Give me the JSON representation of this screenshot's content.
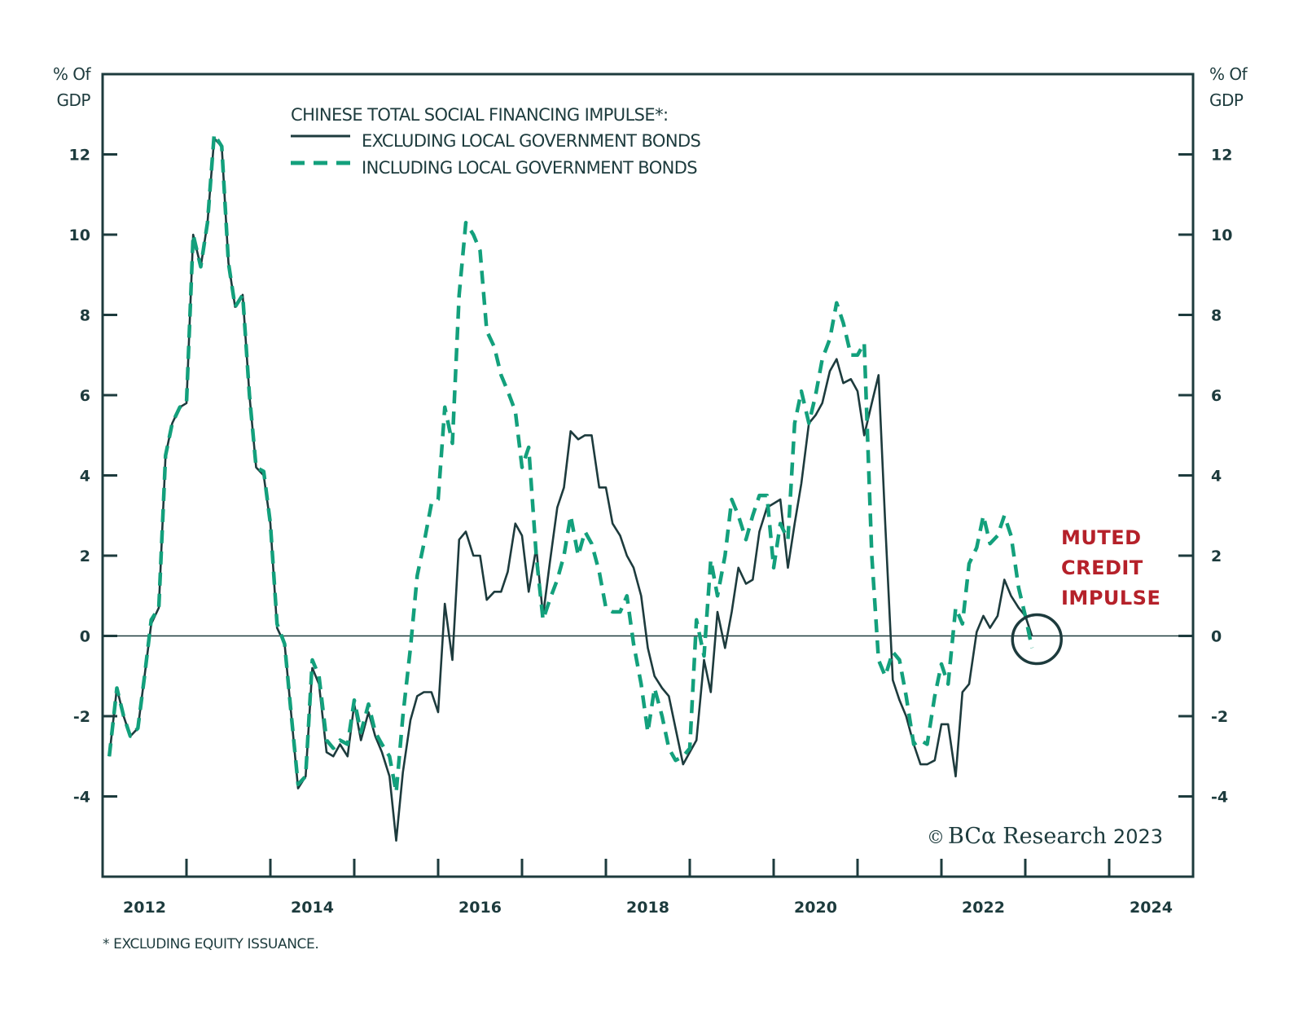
{
  "chart_data": {
    "type": "line",
    "title": "CHINESE TOTAL SOCIAL FINANCING IMPULSE*:",
    "ylabel_left": "% Of GDP",
    "ylabel_right": "% Of GDP",
    "xlabel": "",
    "xlim": [
      2012,
      2025
    ],
    "ylim": [
      -6,
      14
    ],
    "x_ticks": [
      2012,
      2013,
      2014,
      2015,
      2016,
      2017,
      2018,
      2019,
      2020,
      2021,
      2022,
      2023,
      2024,
      2025
    ],
    "x_tick_labels": [
      "2012",
      "2014",
      "2016",
      "2018",
      "2020",
      "2022",
      "2024"
    ],
    "x_tick_label_positions": [
      2012.5,
      2014.5,
      2016.5,
      2018.5,
      2020.5,
      2022.5,
      2024.5
    ],
    "y_ticks": [
      -4,
      -2,
      0,
      2,
      4,
      6,
      8,
      10,
      12
    ],
    "y_tick_labels": [
      "-4",
      "-2",
      "0",
      "2",
      "4",
      "6",
      "8",
      "10",
      "12"
    ],
    "zero_line": true,
    "grid": false,
    "legend_position": "top-center",
    "series": [
      {
        "name": "EXCLUDING LOCAL GOVERNMENT BONDS",
        "style": "solid",
        "color": "#1d3b3d",
        "x": [
          2012.08,
          2012.17,
          2012.25,
          2012.33,
          2012.42,
          2012.5,
          2012.58,
          2012.67,
          2012.75,
          2012.83,
          2012.92,
          2013.0,
          2013.08,
          2013.17,
          2013.25,
          2013.33,
          2013.42,
          2013.5,
          2013.58,
          2013.67,
          2013.75,
          2013.83,
          2013.92,
          2014.0,
          2014.08,
          2014.17,
          2014.25,
          2014.33,
          2014.42,
          2014.5,
          2014.58,
          2014.67,
          2014.75,
          2014.83,
          2014.92,
          2015.0,
          2015.08,
          2015.17,
          2015.25,
          2015.33,
          2015.42,
          2015.5,
          2015.58,
          2015.67,
          2015.75,
          2015.83,
          2015.92,
          2016.0,
          2016.08,
          2016.17,
          2016.25,
          2016.33,
          2016.42,
          2016.5,
          2016.58,
          2016.67,
          2016.75,
          2016.83,
          2016.92,
          2017.0,
          2017.08,
          2017.17,
          2017.25,
          2017.33,
          2017.42,
          2017.5,
          2017.58,
          2017.67,
          2017.75,
          2017.83,
          2017.92,
          2018.0,
          2018.08,
          2018.17,
          2018.25,
          2018.33,
          2018.42,
          2018.5,
          2018.58,
          2018.67,
          2018.75,
          2018.83,
          2018.92,
          2019.0,
          2019.08,
          2019.17,
          2019.25,
          2019.33,
          2019.42,
          2019.5,
          2019.58,
          2019.67,
          2019.75,
          2019.83,
          2019.92,
          2020.0,
          2020.08,
          2020.17,
          2020.25,
          2020.33,
          2020.42,
          2020.5,
          2020.58,
          2020.67,
          2020.75,
          2020.83,
          2020.92,
          2021.0,
          2021.08,
          2021.17,
          2021.25,
          2021.33,
          2021.42,
          2021.5,
          2021.58,
          2021.67,
          2021.75,
          2021.83,
          2021.92,
          2022.0,
          2022.08,
          2022.17,
          2022.25,
          2022.33,
          2022.42,
          2022.5,
          2022.58,
          2022.67,
          2022.75,
          2022.83,
          2022.92,
          2023.0,
          2023.08
        ],
        "values": [
          -3.0,
          -1.3,
          -2.0,
          -2.5,
          -2.3,
          -1.0,
          0.3,
          0.7,
          4.5,
          5.3,
          5.7,
          5.8,
          10.0,
          9.2,
          10.3,
          12.4,
          12.2,
          9.3,
          8.2,
          8.5,
          6.0,
          4.2,
          4.0,
          2.8,
          0.2,
          -0.2,
          -2.0,
          -3.8,
          -3.5,
          -0.8,
          -1.2,
          -2.9,
          -3.0,
          -2.7,
          -3.0,
          -1.7,
          -2.6,
          -1.9,
          -2.5,
          -2.9,
          -3.5,
          -5.1,
          -3.4,
          -2.1,
          -1.5,
          -1.4,
          -1.4,
          -1.9,
          0.8,
          -0.6,
          2.4,
          2.6,
          2.0,
          2.0,
          0.9,
          1.1,
          1.1,
          1.6,
          2.8,
          2.5,
          1.1,
          2.2,
          0.5,
          1.8,
          3.2,
          3.7,
          5.1,
          4.9,
          5.0,
          5.0,
          3.7,
          3.7,
          2.8,
          2.5,
          2.0,
          1.7,
          1.0,
          -0.3,
          -1.0,
          -1.3,
          -1.5,
          -2.3,
          -3.2,
          -2.9,
          -2.6,
          -0.6,
          -1.4,
          0.6,
          -0.3,
          0.6,
          1.7,
          1.3,
          1.4,
          2.6,
          3.2,
          3.3,
          3.4,
          1.7,
          2.8,
          3.8,
          5.3,
          5.5,
          5.8,
          6.6,
          6.9,
          6.3,
          6.4,
          6.1,
          5.0,
          5.8,
          6.5,
          2.8,
          -1.1,
          -1.6,
          -2.0,
          -2.7,
          -3.2,
          -3.2,
          -3.1,
          -2.2,
          -2.2,
          -3.5,
          -1.4,
          -1.2,
          0.1,
          0.5,
          0.2,
          0.5,
          1.4,
          1.0,
          0.7,
          0.5,
          0.0
        ],
        "last_value_label": ""
      },
      {
        "name": "INCLUDING LOCAL GOVERNMENT BONDS",
        "style": "dashed",
        "color": "#13a07c",
        "x": [
          2012.08,
          2012.17,
          2012.25,
          2012.33,
          2012.42,
          2012.5,
          2012.58,
          2012.67,
          2012.75,
          2012.83,
          2012.92,
          2013.0,
          2013.08,
          2013.17,
          2013.25,
          2013.33,
          2013.42,
          2013.5,
          2013.58,
          2013.67,
          2013.75,
          2013.83,
          2013.92,
          2014.0,
          2014.08,
          2014.17,
          2014.25,
          2014.33,
          2014.42,
          2014.5,
          2014.58,
          2014.67,
          2014.75,
          2014.83,
          2014.92,
          2015.0,
          2015.08,
          2015.17,
          2015.25,
          2015.33,
          2015.42,
          2015.5,
          2015.58,
          2015.67,
          2015.75,
          2015.83,
          2015.92,
          2016.0,
          2016.08,
          2016.17,
          2016.25,
          2016.33,
          2016.42,
          2016.5,
          2016.58,
          2016.67,
          2016.75,
          2016.83,
          2016.92,
          2017.0,
          2017.08,
          2017.17,
          2017.25,
          2017.33,
          2017.42,
          2017.5,
          2017.58,
          2017.67,
          2017.75,
          2017.83,
          2017.92,
          2018.0,
          2018.08,
          2018.17,
          2018.25,
          2018.33,
          2018.42,
          2018.5,
          2018.58,
          2018.67,
          2018.75,
          2018.83,
          2018.92,
          2019.0,
          2019.08,
          2019.17,
          2019.25,
          2019.33,
          2019.42,
          2019.5,
          2019.58,
          2019.67,
          2019.75,
          2019.83,
          2019.92,
          2020.0,
          2020.08,
          2020.17,
          2020.25,
          2020.33,
          2020.42,
          2020.5,
          2020.58,
          2020.67,
          2020.75,
          2020.83,
          2020.92,
          2021.0,
          2021.08,
          2021.17,
          2021.25,
          2021.33,
          2021.42,
          2021.5,
          2021.58,
          2021.67,
          2021.75,
          2021.83,
          2021.92,
          2022.0,
          2022.08,
          2022.17,
          2022.25,
          2022.33,
          2022.42,
          2022.5,
          2022.58,
          2022.67,
          2022.75,
          2022.83,
          2022.92,
          2023.0,
          2023.08
        ],
        "values": [
          -3.0,
          -1.3,
          -2.0,
          -2.5,
          -2.3,
          -1.0,
          0.4,
          0.7,
          4.5,
          5.3,
          5.7,
          5.8,
          10.0,
          9.2,
          10.3,
          12.5,
          12.2,
          9.3,
          8.2,
          8.5,
          6.0,
          4.2,
          4.1,
          2.8,
          0.3,
          -0.2,
          -2.0,
          -3.7,
          -3.5,
          -0.6,
          -1.0,
          -2.6,
          -2.8,
          -2.6,
          -2.7,
          -1.6,
          -2.4,
          -1.7,
          -2.4,
          -2.7,
          -3.0,
          -3.9,
          -2.0,
          -0.3,
          1.5,
          2.3,
          3.3,
          3.4,
          5.7,
          4.8,
          8.5,
          10.3,
          10.0,
          9.6,
          7.6,
          7.2,
          6.5,
          6.1,
          5.6,
          4.2,
          4.7,
          2.0,
          0.4,
          0.9,
          1.4,
          2.0,
          3.0,
          2.0,
          2.6,
          2.3,
          1.6,
          0.7,
          0.6,
          0.6,
          1.0,
          -0.2,
          -1.2,
          -2.4,
          -1.3,
          -2.0,
          -2.8,
          -3.1,
          -3.0,
          -2.8,
          0.4,
          -0.5,
          1.9,
          1.0,
          2.0,
          3.4,
          3.0,
          2.4,
          3.0,
          3.5,
          3.5,
          1.7,
          2.8,
          2.4,
          5.3,
          6.1,
          5.3,
          6.0,
          6.9,
          7.4,
          8.3,
          7.8,
          7.0,
          7.0,
          7.3,
          2.0,
          -0.6,
          -1.0,
          -0.4,
          -0.6,
          -1.5,
          -2.7,
          -2.6,
          -2.7,
          -1.5,
          -0.7,
          -1.2,
          0.7,
          0.3,
          1.8,
          2.2,
          3.0,
          2.3,
          2.5,
          3.0,
          2.5,
          1.2,
          0.5,
          -0.3
        ],
        "last_value_label": ""
      }
    ],
    "annotations": [
      {
        "text_lines": [
          "MUTED",
          "CREDIT",
          "IMPULSE"
        ],
        "color": "#b5212a",
        "target_x": 2023.08,
        "target_y": 0.0,
        "marker": "circle"
      }
    ],
    "footnote": "* EXCLUDING EQUITY ISSUANCE.",
    "source": "© BCα Research 2023"
  },
  "labels": {
    "left_unit_line1": "% Of",
    "left_unit_line2": "GDP",
    "right_unit_line1": "% Of",
    "right_unit_line2": "GDP",
    "legend_title": "CHINESE TOTAL SOCIAL FINANCING IMPULSE",
    "legend_title_mark": "*:",
    "legend_item_1": "EXCLUDING LOCAL GOVERNMENT BONDS",
    "legend_item_2": "INCLUDING LOCAL GOVERNMENT BONDS",
    "annotation_line_1": "MUTED",
    "annotation_line_2": "CREDIT",
    "annotation_line_3": "IMPULSE",
    "copyright_symbol": "©",
    "copyright_brand": "BCα",
    "copyright_name": "Research",
    "copyright_year": "2023",
    "footnote": "* EXCLUDING EQUITY ISSUANCE."
  },
  "colors": {
    "axis": "#1d3b3d",
    "solid_series": "#1d3b3d",
    "dashed_series": "#13a07c",
    "annotation": "#b5212a"
  }
}
